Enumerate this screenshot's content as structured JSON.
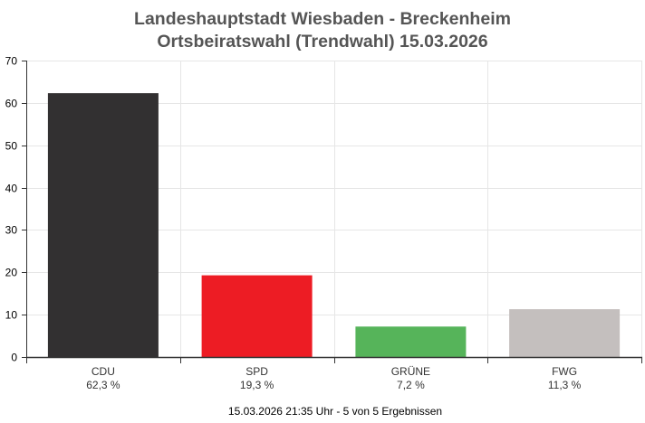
{
  "chart_data": {
    "type": "bar",
    "title": [
      "Landeshauptstadt Wiesbaden - Breckenheim",
      "Ortsbeiratswahl (Trendwahl) 15.03.2026"
    ],
    "categories": [
      "CDU",
      "SPD",
      "GRÜNE",
      "FWG"
    ],
    "values": [
      62.3,
      19.3,
      7.2,
      11.3
    ],
    "value_labels": [
      "62,3 %",
      "19,3 %",
      "7,2 %",
      "11,3 %"
    ],
    "colors": [
      "#323031",
      "#ed1c24",
      "#56b45a",
      "#c4bfbe"
    ],
    "ylim": [
      0,
      70
    ],
    "yticks": [
      0,
      10,
      20,
      30,
      40,
      50,
      60,
      70
    ],
    "xlabel": "",
    "ylabel": "",
    "grid": true,
    "legend": "none",
    "footer": "15.03.2026 21:35 Uhr - 5 von 5 Ergebnissen"
  }
}
